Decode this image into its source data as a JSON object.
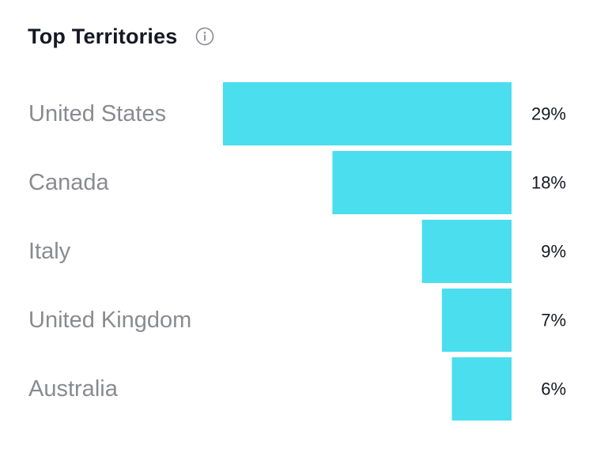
{
  "header": {
    "title": "Top Territories",
    "info_icon": "info-icon"
  },
  "colors": {
    "bar": "#4ADEEF",
    "label": "#8a8b91",
    "value": "#161823",
    "title": "#161823"
  },
  "chart_data": {
    "type": "bar",
    "orientation": "horizontal",
    "title": "Top Territories",
    "categories": [
      "United States",
      "Canada",
      "Italy",
      "United Kingdom",
      "Australia"
    ],
    "values": [
      29,
      18,
      9,
      7,
      6
    ],
    "value_labels": [
      "29%",
      "18%",
      "9%",
      "7%",
      "6%"
    ],
    "unit": "%",
    "xlim": [
      0,
      29
    ],
    "grid": false,
    "legend": "none"
  }
}
